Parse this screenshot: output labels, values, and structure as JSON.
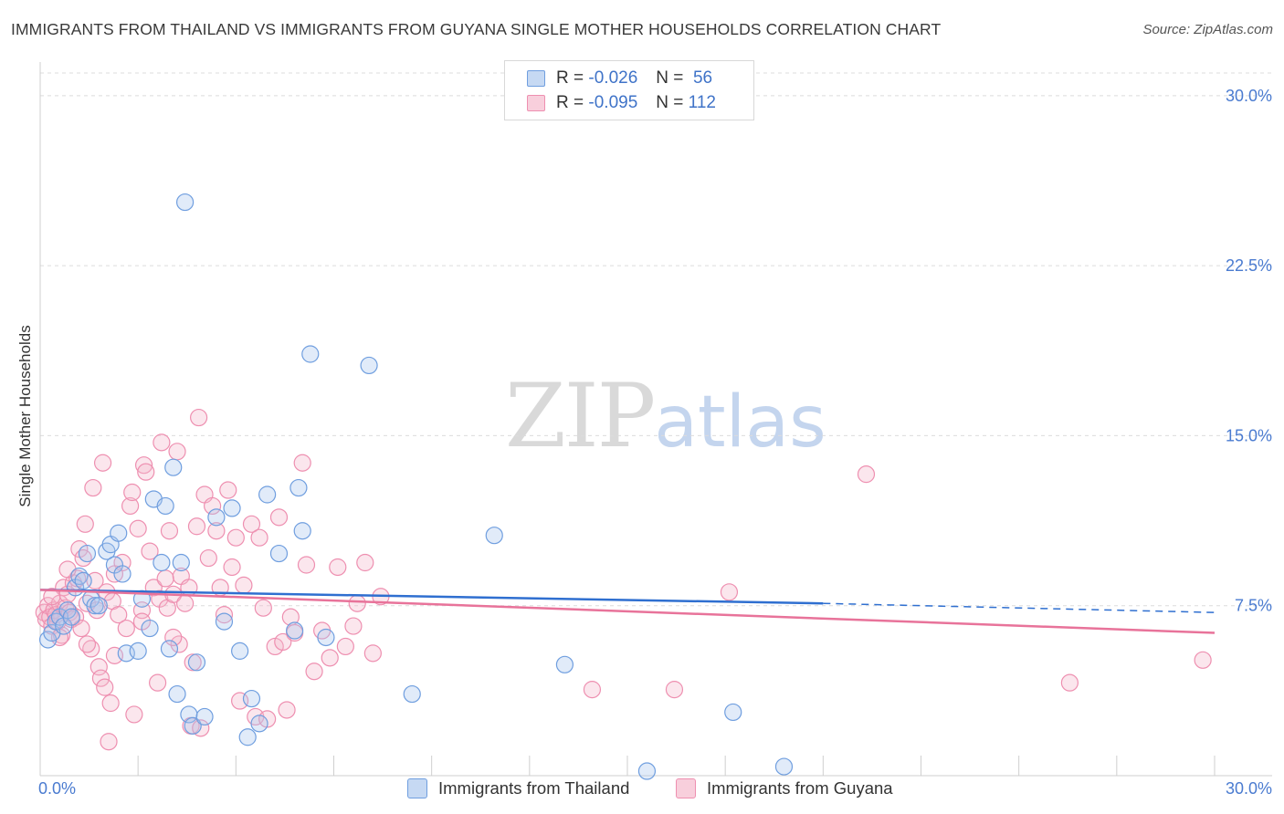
{
  "header": {
    "title": "IMMIGRANTS FROM THAILAND VS IMMIGRANTS FROM GUYANA SINGLE MOTHER HOUSEHOLDS CORRELATION CHART",
    "source": "Source: ZipAtlas.com"
  },
  "watermark": {
    "zip": "ZIP",
    "atlas": "atlas"
  },
  "stats": [
    {
      "r_label": "R =",
      "r_value": "-0.026",
      "n_label": "N =",
      "n_value": "56",
      "color": "#a9c6ee"
    },
    {
      "r_label": "R =",
      "r_value": "-0.095",
      "n_label": "N =",
      "n_value": "112",
      "color": "#f4b6ca"
    }
  ],
  "legend": [
    {
      "label": "Immigrants from Thailand",
      "color": "#a9c6ee"
    },
    {
      "label": "Immigrants from Guyana",
      "color": "#f4b6ca"
    }
  ],
  "colors": {
    "thailand_stroke": "#6f9edf",
    "thailand_fill": "rgba(169,198,238,0.35)",
    "thailand_line": "#2f6fd0",
    "guyana_stroke": "#ee8fb0",
    "guyana_fill": "rgba(244,182,202,0.35)",
    "guyana_line": "#e8739a",
    "grid": "#dcdcdc",
    "axis_text": "#4a7bd0"
  },
  "chart_data": {
    "type": "scatter",
    "title": "IMMIGRANTS FROM THAILAND VS IMMIGRANTS FROM GUYANA SINGLE MOTHER HOUSEHOLDS CORRELATION CHART",
    "xlabel": "",
    "ylabel": "Single Mother Households",
    "xlim": [
      0,
      30
    ],
    "ylim": [
      0,
      31
    ],
    "x_tick_labels": [
      "0.0%",
      "30.0%"
    ],
    "y_ticks": [
      7.5,
      15.0,
      22.5,
      30.0
    ],
    "y_tick_labels": [
      "7.5%",
      "15.0%",
      "22.5%",
      "30.0%"
    ],
    "grid": "horizontal dashed",
    "legend_position": "bottom",
    "series": [
      {
        "name": "Immigrants from Thailand",
        "trend": {
          "x": [
            0.0,
            20.0,
            30.0
          ],
          "y": [
            8.2,
            7.6,
            7.2
          ],
          "solid_until": 20.0
        },
        "points": [
          [
            0.2,
            6.0
          ],
          [
            0.3,
            6.3
          ],
          [
            0.4,
            6.8
          ],
          [
            0.5,
            7.0
          ],
          [
            0.6,
            6.6
          ],
          [
            0.7,
            7.3
          ],
          [
            0.8,
            7.0
          ],
          [
            0.9,
            8.3
          ],
          [
            1.0,
            8.8
          ],
          [
            1.1,
            8.6
          ],
          [
            1.2,
            9.8
          ],
          [
            1.3,
            7.8
          ],
          [
            1.4,
            7.5
          ],
          [
            1.5,
            7.5
          ],
          [
            1.7,
            9.9
          ],
          [
            1.8,
            10.2
          ],
          [
            1.9,
            9.3
          ],
          [
            2.0,
            10.7
          ],
          [
            2.1,
            8.9
          ],
          [
            2.2,
            5.4
          ],
          [
            2.5,
            5.5
          ],
          [
            2.6,
            7.8
          ],
          [
            2.8,
            6.5
          ],
          [
            2.9,
            12.2
          ],
          [
            3.1,
            9.4
          ],
          [
            3.2,
            11.9
          ],
          [
            3.3,
            5.6
          ],
          [
            3.4,
            13.6
          ],
          [
            3.5,
            3.6
          ],
          [
            3.6,
            9.4
          ],
          [
            3.7,
            25.3
          ],
          [
            3.8,
            2.7
          ],
          [
            3.9,
            2.2
          ],
          [
            4.0,
            5.0
          ],
          [
            4.2,
            2.6
          ],
          [
            4.5,
            11.4
          ],
          [
            4.7,
            6.8
          ],
          [
            4.9,
            11.8
          ],
          [
            5.1,
            5.5
          ],
          [
            5.3,
            1.7
          ],
          [
            5.4,
            3.4
          ],
          [
            5.6,
            2.3
          ],
          [
            5.8,
            12.4
          ],
          [
            6.1,
            9.8
          ],
          [
            6.5,
            6.4
          ],
          [
            6.6,
            12.7
          ],
          [
            6.7,
            10.8
          ],
          [
            6.9,
            18.6
          ],
          [
            7.3,
            6.1
          ],
          [
            8.4,
            18.1
          ],
          [
            9.5,
            3.6
          ],
          [
            11.6,
            10.6
          ],
          [
            13.4,
            4.9
          ],
          [
            15.5,
            0.2
          ],
          [
            17.7,
            2.8
          ],
          [
            19.0,
            0.4
          ]
        ]
      },
      {
        "name": "Immigrants from Guyana",
        "trend": {
          "x": [
            0.0,
            30.0
          ],
          "y": [
            8.2,
            6.3
          ]
        },
        "points": [
          [
            0.1,
            7.2
          ],
          [
            0.15,
            6.9
          ],
          [
            0.2,
            7.5
          ],
          [
            0.25,
            7.0
          ],
          [
            0.3,
            6.6
          ],
          [
            0.35,
            7.3
          ],
          [
            0.4,
            7.1
          ],
          [
            0.45,
            6.8
          ],
          [
            0.5,
            7.6
          ],
          [
            0.55,
            6.2
          ],
          [
            0.6,
            8.3
          ],
          [
            0.65,
            7.4
          ],
          [
            0.7,
            8.0
          ],
          [
            0.75,
            7.2
          ],
          [
            0.8,
            6.9
          ],
          [
            0.85,
            8.5
          ],
          [
            0.9,
            7.0
          ],
          [
            0.95,
            8.7
          ],
          [
            1.0,
            10.0
          ],
          [
            1.05,
            6.5
          ],
          [
            1.1,
            9.6
          ],
          [
            1.15,
            11.1
          ],
          [
            1.2,
            7.6
          ],
          [
            1.3,
            5.6
          ],
          [
            1.35,
            12.7
          ],
          [
            1.4,
            8.6
          ],
          [
            1.45,
            7.3
          ],
          [
            1.5,
            4.8
          ],
          [
            1.55,
            4.3
          ],
          [
            1.6,
            13.8
          ],
          [
            1.65,
            3.9
          ],
          [
            1.7,
            8.1
          ],
          [
            1.75,
            1.5
          ],
          [
            1.8,
            3.2
          ],
          [
            1.85,
            7.7
          ],
          [
            1.9,
            5.3
          ],
          [
            2.0,
            7.1
          ],
          [
            2.1,
            9.4
          ],
          [
            2.2,
            6.5
          ],
          [
            2.3,
            11.9
          ],
          [
            2.35,
            12.5
          ],
          [
            2.4,
            2.7
          ],
          [
            2.5,
            10.9
          ],
          [
            2.6,
            7.3
          ],
          [
            2.65,
            13.7
          ],
          [
            2.7,
            13.4
          ],
          [
            2.8,
            9.9
          ],
          [
            2.9,
            8.3
          ],
          [
            3.0,
            4.1
          ],
          [
            3.05,
            7.8
          ],
          [
            3.1,
            14.7
          ],
          [
            3.2,
            8.7
          ],
          [
            3.25,
            7.4
          ],
          [
            3.3,
            10.8
          ],
          [
            3.4,
            8.0
          ],
          [
            3.5,
            14.3
          ],
          [
            3.55,
            5.8
          ],
          [
            3.6,
            8.8
          ],
          [
            3.7,
            7.6
          ],
          [
            3.8,
            8.3
          ],
          [
            3.85,
            2.2
          ],
          [
            3.9,
            5.0
          ],
          [
            4.0,
            11.0
          ],
          [
            4.05,
            15.8
          ],
          [
            4.1,
            2.1
          ],
          [
            4.2,
            12.4
          ],
          [
            4.3,
            9.6
          ],
          [
            4.4,
            11.9
          ],
          [
            4.5,
            10.8
          ],
          [
            4.6,
            8.3
          ],
          [
            4.7,
            7.1
          ],
          [
            4.8,
            12.6
          ],
          [
            4.9,
            9.2
          ],
          [
            5.0,
            10.5
          ],
          [
            5.1,
            3.3
          ],
          [
            5.2,
            8.4
          ],
          [
            5.4,
            11.1
          ],
          [
            5.5,
            2.6
          ],
          [
            5.6,
            10.5
          ],
          [
            5.8,
            2.5
          ],
          [
            6.0,
            5.7
          ],
          [
            6.1,
            11.4
          ],
          [
            6.2,
            5.9
          ],
          [
            6.3,
            2.9
          ],
          [
            6.5,
            6.3
          ],
          [
            6.7,
            13.8
          ],
          [
            6.8,
            9.3
          ],
          [
            7.0,
            4.6
          ],
          [
            7.2,
            6.4
          ],
          [
            7.4,
            5.2
          ],
          [
            7.6,
            9.2
          ],
          [
            7.8,
            5.7
          ],
          [
            8.1,
            7.6
          ],
          [
            8.3,
            9.4
          ],
          [
            8.5,
            5.4
          ],
          [
            8.7,
            7.9
          ],
          [
            14.1,
            3.8
          ],
          [
            16.2,
            3.8
          ],
          [
            17.6,
            8.1
          ],
          [
            21.1,
            13.3
          ],
          [
            26.3,
            4.1
          ],
          [
            29.7,
            5.1
          ],
          [
            0.3,
            7.9
          ],
          [
            0.5,
            6.1
          ],
          [
            0.7,
            9.1
          ],
          [
            1.2,
            5.8
          ],
          [
            1.9,
            8.9
          ],
          [
            2.6,
            6.8
          ],
          [
            3.4,
            6.1
          ],
          [
            5.7,
            7.4
          ],
          [
            6.4,
            7.0
          ],
          [
            8.0,
            6.6
          ]
        ]
      }
    ]
  }
}
